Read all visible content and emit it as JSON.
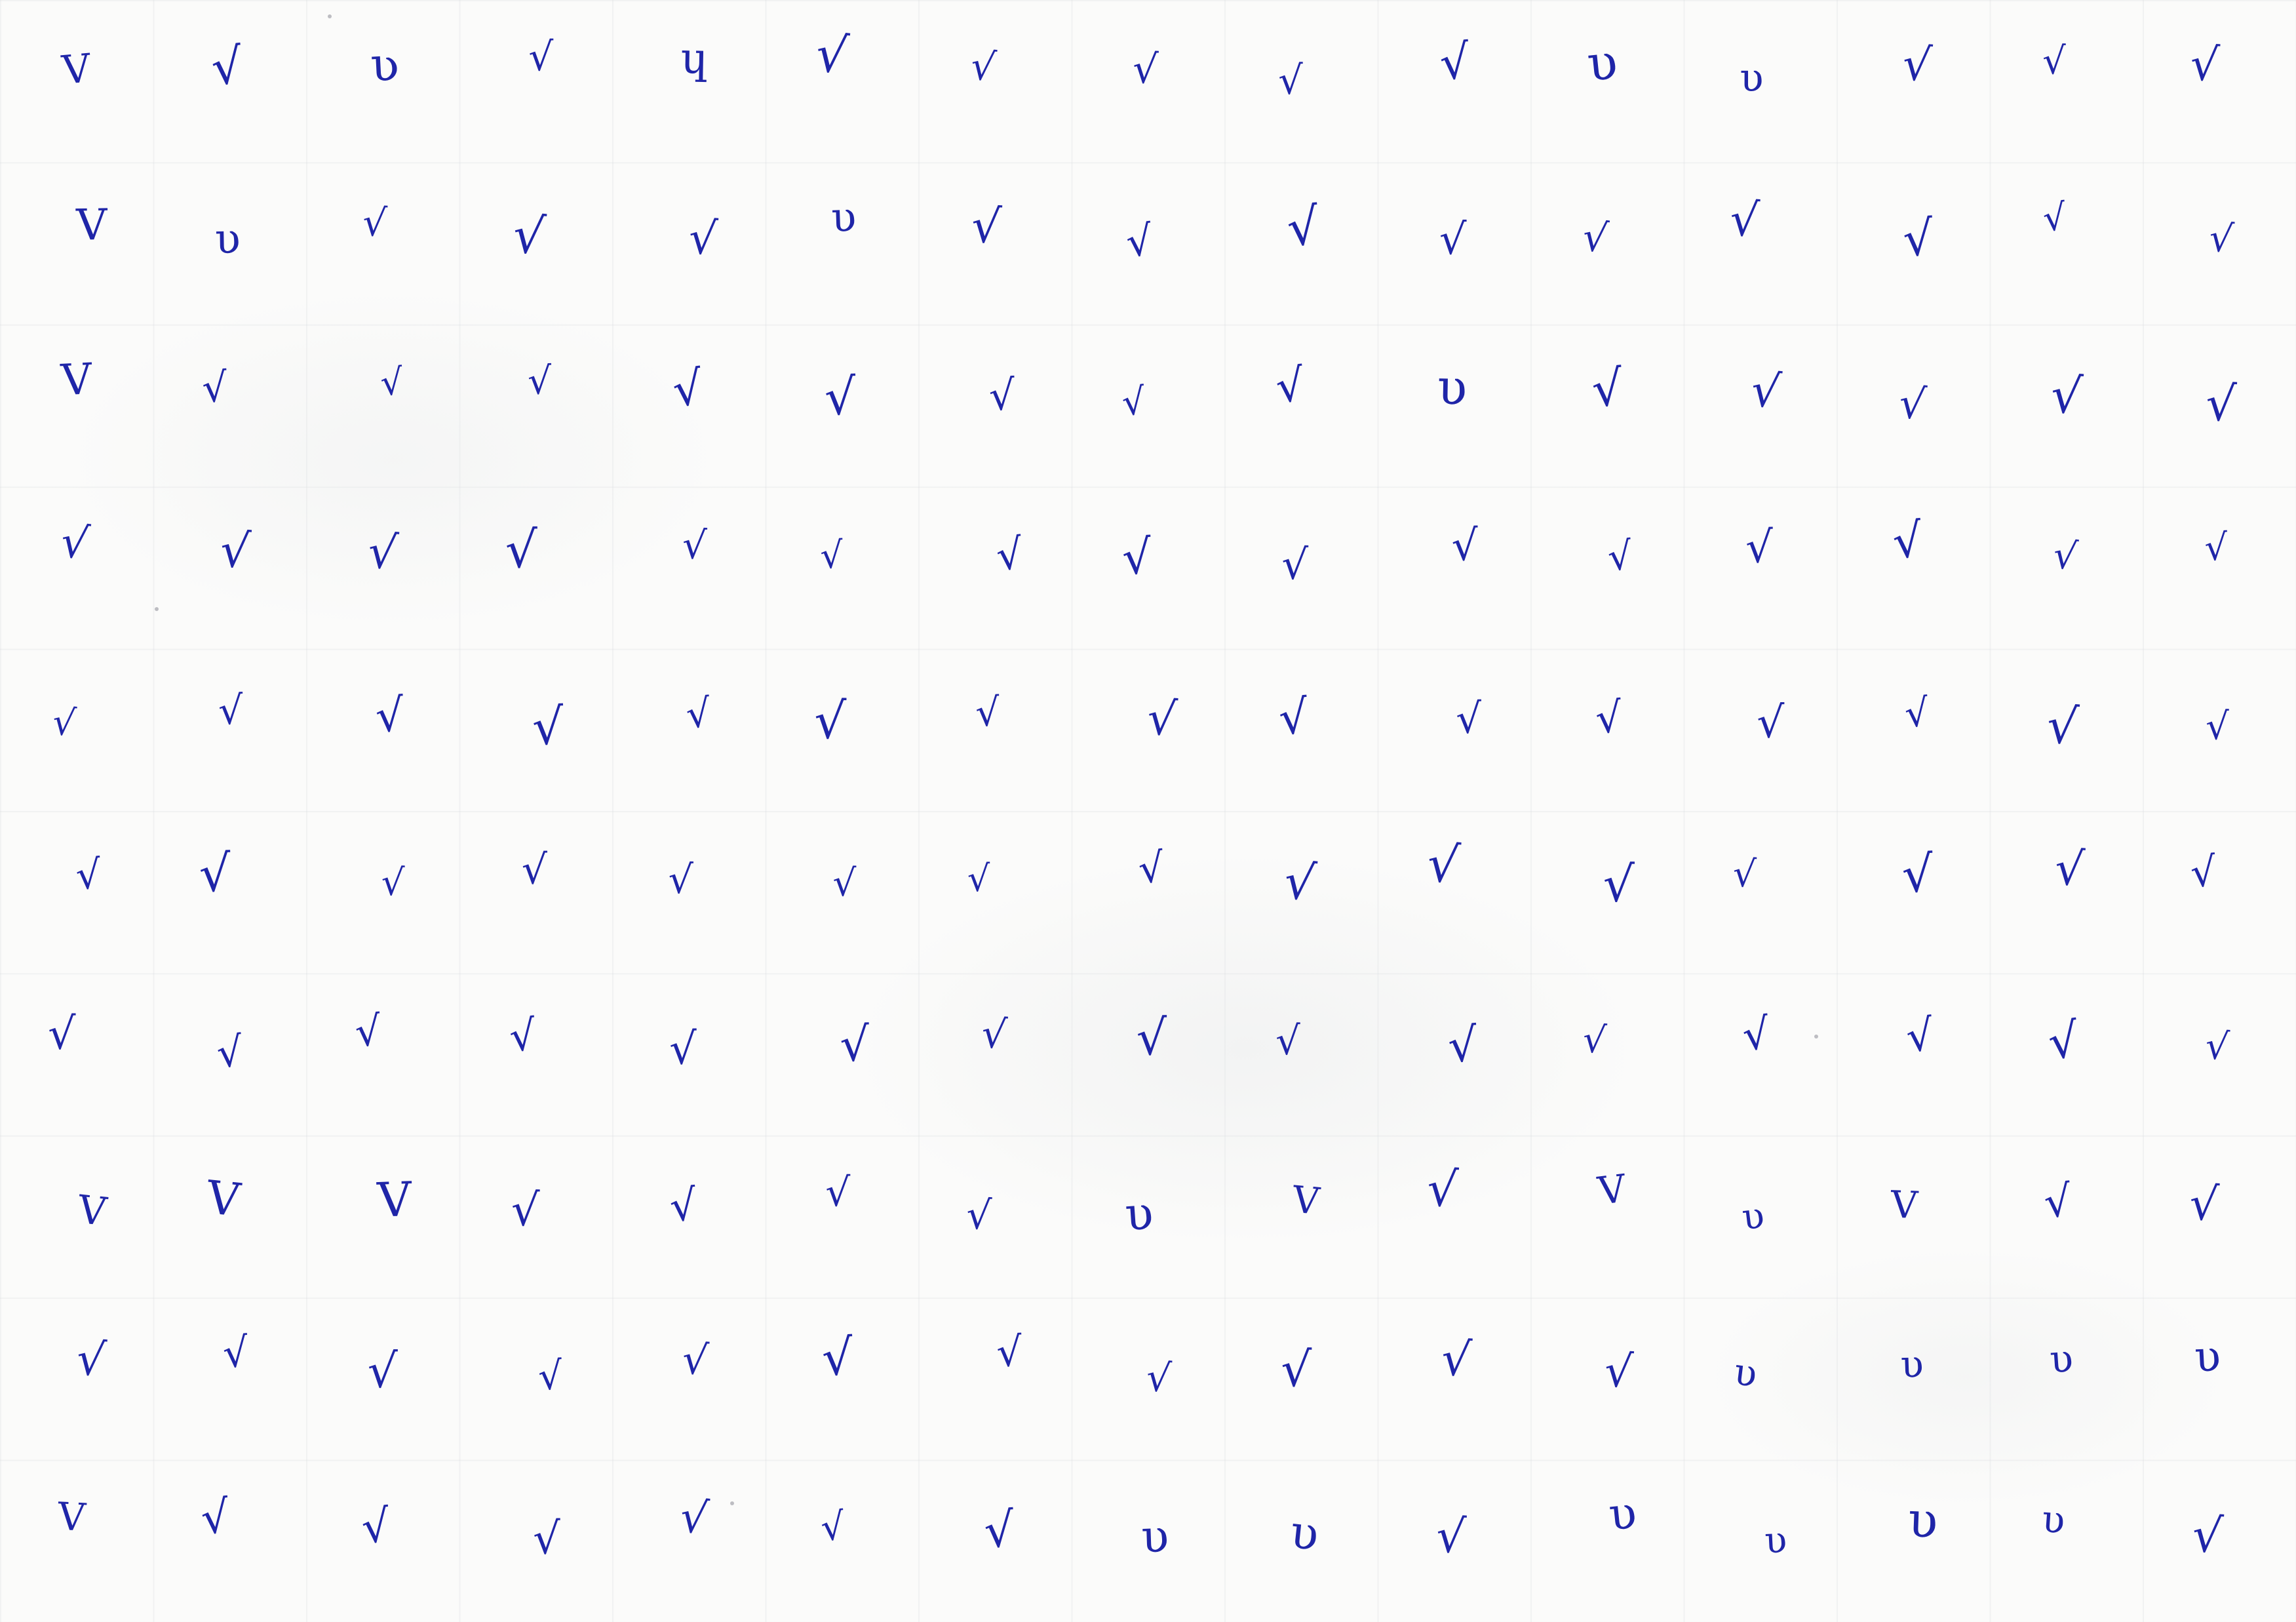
{
  "sheet": {
    "ink_color": "#1f25a8",
    "rows": [
      [
        "V",
        "√",
        "ʋ",
        "√",
        "ɥ",
        "√",
        "√",
        "√",
        "√",
        "√",
        "υ",
        "υ",
        "√",
        "√",
        "√"
      ],
      [
        "V",
        "υ",
        "√",
        "√",
        "√",
        "υ",
        "√",
        "√",
        "√",
        "√",
        "√",
        "√",
        "√",
        "√",
        "√"
      ],
      [
        "V",
        "√",
        "√",
        "√",
        "√",
        "√",
        "√",
        "√",
        "√",
        "υ",
        "√",
        "√",
        "√",
        "√",
        "√"
      ],
      [
        "√",
        "√",
        "√",
        "√",
        "√",
        "√",
        "√",
        "√",
        "√",
        "√",
        "√",
        "√",
        "√",
        "√",
        "√"
      ],
      [
        "√",
        "√",
        "√",
        "√",
        "√",
        "√",
        "√",
        "√",
        "√",
        "√",
        "√",
        "√",
        "√",
        "√",
        "√"
      ],
      [
        "√",
        "√",
        "√",
        "√",
        "√",
        "√",
        "√",
        "√",
        "√",
        "√",
        "√",
        "√",
        "√",
        "√",
        "√"
      ],
      [
        "√",
        "√",
        "√",
        "√",
        "√",
        "√",
        "√",
        "√",
        "√",
        "√",
        "√",
        "√",
        "√",
        "√",
        "√"
      ],
      [
        "V",
        "V",
        "V",
        "√",
        "√",
        "√",
        "√",
        "υ",
        "V",
        "√",
        "V",
        "υ",
        "V",
        "√",
        "√"
      ],
      [
        "√",
        "√",
        "√",
        "√",
        "√",
        "√",
        "√",
        "√",
        "√",
        "√",
        "√",
        "υ",
        "υ",
        "υ",
        "υ"
      ],
      [
        "V",
        "√",
        "√",
        "√",
        "√",
        "√",
        "√",
        "υ",
        "υ",
        "√",
        "υ",
        "υ",
        "υ",
        "υ",
        "√"
      ]
    ]
  }
}
